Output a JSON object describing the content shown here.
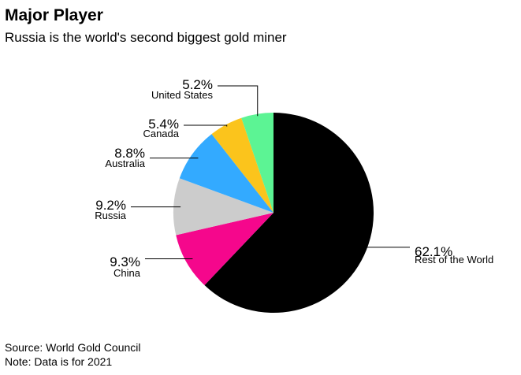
{
  "header": {
    "title": "Major Player",
    "subtitle": "Russia is the world's second biggest gold miner"
  },
  "footer": {
    "source": "Source: World Gold Council",
    "note": "Note: Data is for 2021"
  },
  "chart_data": {
    "type": "pie",
    "title": "Major Player",
    "subtitle": "Russia is the world's second biggest gold miner",
    "slices": [
      {
        "name": "Rest of the World",
        "value": 62.1,
        "label": "62.1%",
        "color": "#000000"
      },
      {
        "name": "China",
        "value": 9.3,
        "label": "9.3%",
        "color": "#f5078c"
      },
      {
        "name": "Russia",
        "value": 9.2,
        "label": "9.2%",
        "color": "#cccccc"
      },
      {
        "name": "Australia",
        "value": 8.8,
        "label": "8.8%",
        "color": "#33aaff"
      },
      {
        "name": "Canada",
        "value": 5.4,
        "label": "5.4%",
        "color": "#fbc41c"
      },
      {
        "name": "United States",
        "value": 5.2,
        "label": "5.2%",
        "color": "#5cf494"
      }
    ],
    "start": "12 o'clock, clockwise",
    "legend": "none"
  }
}
